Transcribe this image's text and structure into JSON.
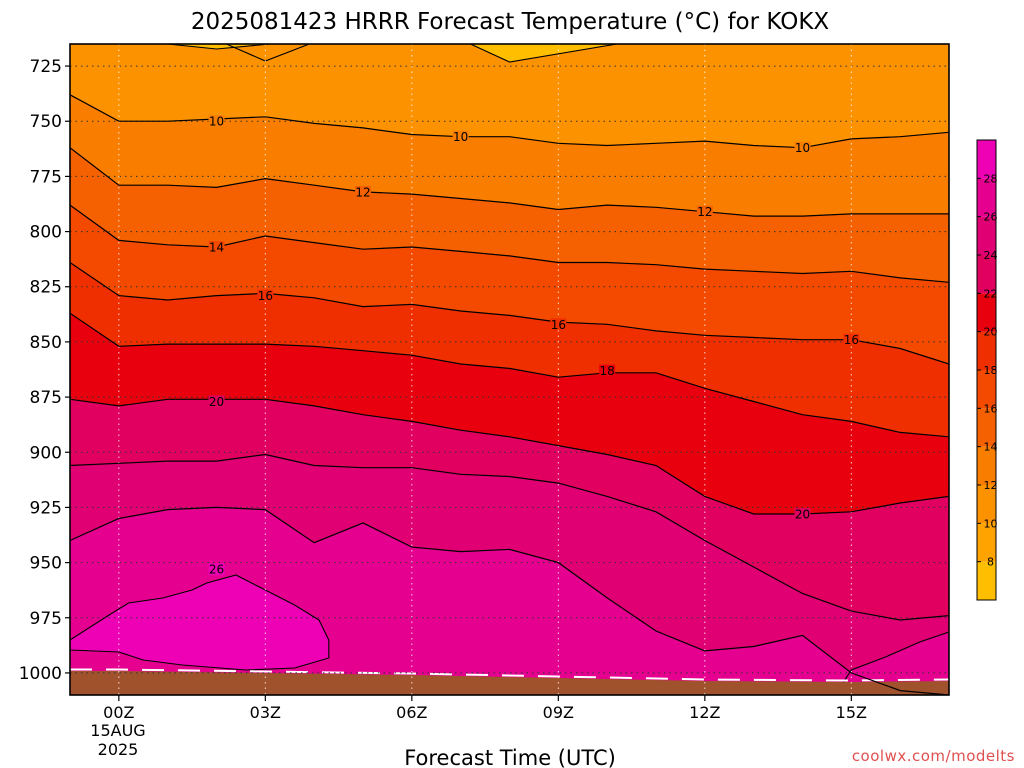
{
  "chart_data": {
    "type": "heatmap",
    "subtype": "filled-contour time-height cross section",
    "title": "2025081423 HRRR Forecast Temperature (°C) for KOKX",
    "xlabel": "Forecast Time (UTC)",
    "ylabel": "",
    "x_ticks": [
      "00Z",
      "03Z",
      "06Z",
      "09Z",
      "12Z",
      "15Z"
    ],
    "x_tick_hours": [
      0,
      3,
      6,
      9,
      12,
      15
    ],
    "x_date_lines": [
      "15AUG",
      "2025"
    ],
    "xlim_hours": [
      -1,
      17
    ],
    "y_ticks": [
      725,
      750,
      775,
      800,
      825,
      850,
      875,
      900,
      925,
      950,
      975,
      1000
    ],
    "ylim_hpa": [
      1010,
      715
    ],
    "y_inverted": true,
    "grid": true,
    "times_hours": [
      -1,
      0,
      1,
      2,
      3,
      4,
      5,
      6,
      7,
      8,
      9,
      10,
      11,
      12,
      13,
      14,
      15,
      16,
      17
    ],
    "contour_lines": [
      {
        "level": 10,
        "label_positions": [
          [
            2,
            750
          ],
          [
            7,
            757
          ],
          [
            14,
            762
          ]
        ],
        "pressure_hpa": [
          738,
          750,
          750,
          749,
          748,
          751,
          753,
          756,
          757,
          757,
          760,
          761,
          760,
          759,
          761,
          762,
          758,
          757,
          755
        ]
      },
      {
        "level": 12,
        "label_positions": [
          [
            5,
            782
          ],
          [
            12,
            791
          ]
        ],
        "pressure_hpa": [
          762,
          779,
          779,
          780,
          776,
          779,
          782,
          783,
          785,
          787,
          790,
          788,
          789,
          791,
          793,
          793,
          792,
          792,
          792
        ]
      },
      {
        "level": 14,
        "label_positions": [
          [
            2,
            807
          ]
        ],
        "pressure_hpa": [
          788,
          804,
          806,
          807,
          802,
          805,
          808,
          807,
          809,
          811,
          814,
          814,
          815,
          817,
          818,
          819,
          818,
          821,
          823
        ]
      },
      {
        "level": 16,
        "label_positions": [
          [
            3,
            829
          ],
          [
            9,
            842
          ],
          [
            15,
            849
          ]
        ],
        "pressure_hpa": [
          814,
          829,
          831,
          829,
          828,
          830,
          834,
          833,
          836,
          838,
          841,
          842,
          845,
          847,
          848,
          849,
          849,
          853,
          860
        ]
      },
      {
        "level": 18,
        "label_positions": [
          [
            10,
            863
          ]
        ],
        "pressure_hpa": [
          837,
          852,
          851,
          851,
          851,
          852,
          854,
          856,
          860,
          862,
          866,
          864,
          864,
          871,
          877,
          883,
          886,
          891,
          893
        ]
      },
      {
        "level": 20,
        "label_positions": [
          [
            2,
            877
          ],
          [
            14,
            928
          ]
        ],
        "pressure_hpa": [
          876,
          879,
          876,
          876,
          876,
          879,
          883,
          886,
          890,
          893,
          897,
          901,
          906,
          920,
          928,
          928,
          927,
          923,
          920
        ]
      },
      {
        "level": 22,
        "label_positions": [],
        "pressure_hpa": [
          906,
          905,
          904,
          904,
          901,
          906,
          907,
          907,
          910,
          911,
          914,
          920,
          927,
          940,
          952,
          964,
          972,
          976,
          974
        ]
      },
      {
        "level": 24,
        "label_positions": [],
        "pressure_hpa": [
          940,
          930,
          926,
          925,
          926,
          941,
          932,
          943,
          945,
          944,
          950,
          966,
          981,
          990,
          988,
          983,
          1000,
          1008,
          1010
        ]
      }
    ],
    "closed_contours": [
      {
        "level": 26,
        "label_position": [
          2,
          953
        ]
      },
      {
        "level": 22,
        "label_position": null
      },
      {
        "level": 24,
        "label_position": null
      }
    ],
    "terrain": {
      "label": "",
      "surface_pressure_hpa_approx": 1005
    },
    "colorbar": {
      "ticks": [
        8,
        10,
        12,
        14,
        16,
        18,
        20,
        22,
        24,
        26,
        28
      ],
      "range": [
        6,
        30
      ],
      "colors": [
        "#ffbe00",
        "#ffa300",
        "#fd9200",
        "#f97e00",
        "#f56000",
        "#f34a00",
        "#f02f00",
        "#e8000e",
        "#e10060",
        "#e00074",
        "#e50090",
        "#ee00b4"
      ]
    },
    "credit": "coolwx.com/modelts"
  }
}
